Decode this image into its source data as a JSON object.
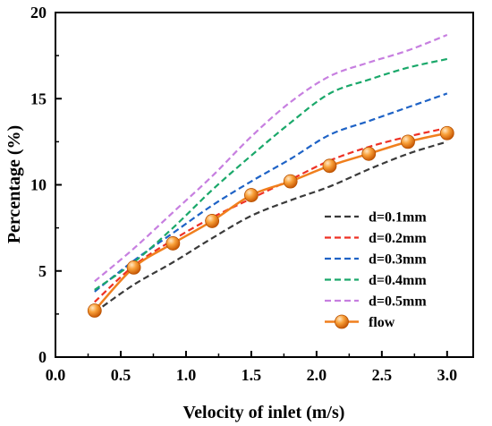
{
  "chart_data": {
    "type": "line",
    "xlabel": "Velocity of inlet (m/s)",
    "ylabel": "Percentage (%)",
    "xlim": [
      0.0,
      3.2
    ],
    "ylim": [
      0,
      20
    ],
    "xticks": [
      0.0,
      0.5,
      1.0,
      1.5,
      2.0,
      2.5,
      3.0
    ],
    "yticks": [
      0,
      5,
      10,
      15,
      20
    ],
    "xtick_labels": [
      "0.0",
      "0.5",
      "1.0",
      "1.5",
      "2.0",
      "2.5",
      "3.0"
    ],
    "ytick_labels": [
      "0",
      "5",
      "10",
      "15",
      "20"
    ],
    "grid": false,
    "legend_position": "bottom-right",
    "series": [
      {
        "name": "d=0.1mm",
        "color": "#3a3a3a",
        "style": "dashed",
        "x": [
          0.3,
          0.6,
          0.9,
          1.2,
          1.5,
          1.8,
          2.1,
          2.4,
          2.7,
          3.0
        ],
        "y": [
          2.6,
          4.2,
          5.5,
          6.9,
          8.2,
          9.1,
          9.9,
          10.9,
          11.8,
          12.5
        ]
      },
      {
        "name": "d=0.2mm",
        "color": "#ee3124",
        "style": "dashed",
        "x": [
          0.3,
          0.6,
          0.9,
          1.2,
          1.5,
          1.8,
          2.1,
          2.4,
          2.7,
          3.0
        ],
        "y": [
          3.2,
          5.3,
          6.8,
          8.1,
          9.2,
          10.3,
          11.4,
          12.2,
          12.8,
          13.3
        ]
      },
      {
        "name": "d=0.3mm",
        "color": "#1f63c6",
        "style": "dashed",
        "x": [
          0.3,
          0.6,
          0.9,
          1.2,
          1.5,
          1.8,
          2.1,
          2.4,
          2.7,
          3.0
        ],
        "y": [
          3.8,
          5.6,
          7.2,
          8.8,
          10.2,
          11.5,
          12.9,
          13.7,
          14.5,
          15.3
        ]
      },
      {
        "name": "d=0.4mm",
        "color": "#1aa86a",
        "style": "dashed",
        "x": [
          0.3,
          0.6,
          0.9,
          1.2,
          1.5,
          1.8,
          2.1,
          2.4,
          2.7,
          3.0
        ],
        "y": [
          3.9,
          5.5,
          7.5,
          9.7,
          11.7,
          13.6,
          15.3,
          16.1,
          16.8,
          17.3
        ]
      },
      {
        "name": "d=0.5mm",
        "color": "#c77fe0",
        "style": "dashed",
        "x": [
          0.3,
          0.6,
          0.9,
          1.2,
          1.5,
          1.8,
          2.1,
          2.4,
          2.7,
          3.0
        ],
        "y": [
          4.4,
          6.3,
          8.4,
          10.5,
          12.8,
          14.8,
          16.3,
          17.1,
          17.8,
          18.7
        ]
      },
      {
        "name": "flow",
        "color": "#f07f1d",
        "style": "solid",
        "marker": "sphere",
        "x": [
          0.3,
          0.6,
          0.9,
          1.2,
          1.5,
          1.8,
          2.1,
          2.4,
          2.7,
          3.0
        ],
        "y": [
          2.7,
          5.2,
          6.6,
          7.9,
          9.4,
          10.2,
          11.1,
          11.8,
          12.5,
          13.0
        ]
      }
    ]
  }
}
